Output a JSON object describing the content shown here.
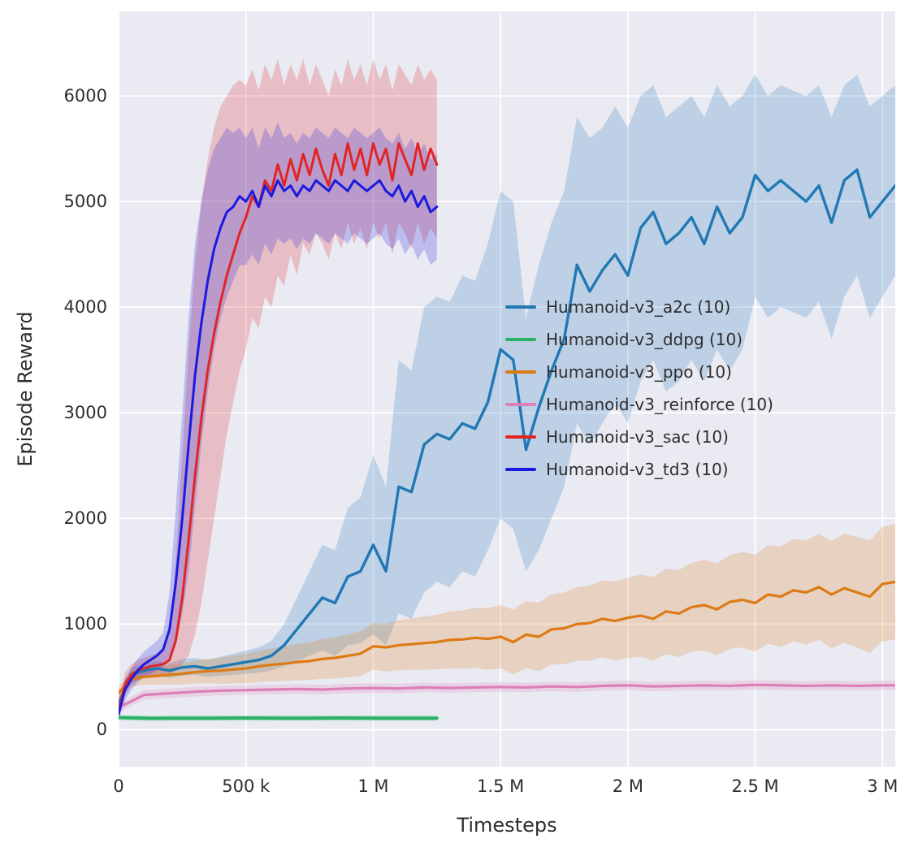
{
  "figure": {
    "background": "#ffffff",
    "plot_background": "#eaeaf2",
    "grid_color": "#ffffff",
    "text_color": "#2e2e2e"
  },
  "chart_data": {
    "type": "line",
    "title": "",
    "xlabel": "Timesteps",
    "ylabel": "Episode Reward",
    "x_unit": "timesteps, values stored in thousands",
    "xlim": [
      0,
      3050
    ],
    "ylim": [
      -350,
      6800
    ],
    "grid": true,
    "legend_position": "inside center-right",
    "x_ticks": [
      {
        "v": 0,
        "label": "0"
      },
      {
        "v": 500,
        "label": "500 k"
      },
      {
        "v": 1000,
        "label": "1 M"
      },
      {
        "v": 1500,
        "label": "1.5 M"
      },
      {
        "v": 2000,
        "label": "2 M"
      },
      {
        "v": 2500,
        "label": "2.5 M"
      },
      {
        "v": 3000,
        "label": "3 M"
      }
    ],
    "y_ticks": [
      {
        "v": 0,
        "label": "0"
      },
      {
        "v": 1000,
        "label": "1000"
      },
      {
        "v": 2000,
        "label": "2000"
      },
      {
        "v": 3000,
        "label": "3000"
      },
      {
        "v": 4000,
        "label": "4000"
      },
      {
        "v": 5000,
        "label": "5000"
      },
      {
        "v": 6000,
        "label": "6000"
      }
    ],
    "series": [
      {
        "name": "Humanoid-v3_a2c (10)",
        "color": "#2178b5",
        "line_width": 3.4,
        "x": [
          0,
          50,
          100,
          150,
          200,
          250,
          300,
          350,
          400,
          450,
          500,
          550,
          600,
          650,
          700,
          750,
          800,
          850,
          900,
          950,
          1000,
          1050,
          1100,
          1150,
          1200,
          1250,
          1300,
          1350,
          1400,
          1450,
          1500,
          1550,
          1600,
          1650,
          1700,
          1750,
          1800,
          1850,
          1900,
          1950,
          2000,
          2050,
          2100,
          2150,
          2200,
          2250,
          2300,
          2350,
          2400,
          2450,
          2500,
          2550,
          2600,
          2650,
          2700,
          2750,
          2800,
          2850,
          2900,
          2950,
          3000,
          3050
        ],
        "mean": [
          250,
          520,
          560,
          580,
          560,
          590,
          600,
          580,
          600,
          620,
          640,
          660,
          700,
          800,
          950,
          1100,
          1250,
          1200,
          1450,
          1500,
          1750,
          1500,
          2300,
          2250,
          2700,
          2800,
          2750,
          2900,
          2850,
          3100,
          3600,
          3500,
          2650,
          3050,
          3400,
          3700,
          4400,
          4150,
          4350,
          4500,
          4300,
          4750,
          4900,
          4600,
          4700,
          4850,
          4600,
          4950,
          4700,
          4850,
          5250,
          5100,
          5200,
          5100,
          5000,
          5150,
          4800,
          5200,
          5300,
          4850,
          5000,
          5150
        ],
        "band_lo": [
          200,
          450,
          490,
          510,
          490,
          510,
          520,
          500,
          510,
          520,
          530,
          540,
          560,
          600,
          650,
          700,
          750,
          700,
          800,
          820,
          900,
          800,
          1100,
          1050,
          1300,
          1400,
          1350,
          1500,
          1450,
          1700,
          2000,
          1900,
          1500,
          1700,
          2000,
          2300,
          2900,
          2700,
          2900,
          3100,
          2900,
          3300,
          3500,
          3200,
          3300,
          3500,
          3300,
          3600,
          3400,
          3600,
          4100,
          3900,
          4000,
          3950,
          3900,
          4050,
          3700,
          4100,
          4300,
          3900,
          4100,
          4300
        ],
        "band_hi": [
          320,
          590,
          630,
          650,
          630,
          670,
          680,
          660,
          690,
          720,
          750,
          780,
          840,
          1000,
          1250,
          1500,
          1750,
          1700,
          2100,
          2200,
          2600,
          2300,
          3500,
          3400,
          4000,
          4100,
          4050,
          4300,
          4250,
          4600,
          5100,
          5000,
          3900,
          4400,
          4800,
          5100,
          5800,
          5600,
          5700,
          5900,
          5700,
          6000,
          6100,
          5800,
          5900,
          6000,
          5800,
          6100,
          5900,
          6000,
          6200,
          6000,
          6100,
          6050,
          6000,
          6100,
          5800,
          6100,
          6200,
          5900,
          6000,
          6100
        ]
      },
      {
        "name": "Humanoid-v3_ddpg (10)",
        "color": "#27b266",
        "line_width": 4,
        "x": [
          0,
          125,
          250,
          375,
          500,
          625,
          750,
          875,
          1000,
          1125,
          1250
        ],
        "mean": [
          115,
          108,
          110,
          109,
          111,
          110,
          109,
          111,
          110,
          109,
          110
        ],
        "band_lo": [
          90,
          83,
          85,
          84,
          86,
          85,
          84,
          86,
          85,
          84,
          85
        ],
        "band_hi": [
          140,
          133,
          135,
          134,
          136,
          135,
          134,
          136,
          135,
          134,
          135
        ]
      },
      {
        "name": "Humanoid-v3_ppo (10)",
        "color": "#dd7a14",
        "line_width": 3.2,
        "x": [
          0,
          50,
          100,
          150,
          200,
          250,
          300,
          350,
          400,
          450,
          500,
          550,
          600,
          650,
          700,
          750,
          800,
          850,
          900,
          950,
          1000,
          1050,
          1100,
          1150,
          1200,
          1250,
          1300,
          1350,
          1400,
          1450,
          1500,
          1550,
          1600,
          1650,
          1700,
          1750,
          1800,
          1850,
          1900,
          1950,
          2000,
          2050,
          2100,
          2150,
          2200,
          2250,
          2300,
          2350,
          2400,
          2450,
          2500,
          2550,
          2600,
          2650,
          2700,
          2750,
          2800,
          2850,
          2900,
          2950,
          3000,
          3050
        ],
        "mean": [
          350,
          480,
          500,
          510,
          520,
          530,
          545,
          555,
          560,
          570,
          580,
          600,
          615,
          625,
          640,
          650,
          670,
          680,
          700,
          720,
          790,
          780,
          800,
          810,
          820,
          830,
          850,
          855,
          870,
          860,
          880,
          830,
          900,
          880,
          950,
          960,
          1000,
          1010,
          1050,
          1030,
          1060,
          1080,
          1050,
          1120,
          1100,
          1160,
          1180,
          1140,
          1210,
          1230,
          1200,
          1280,
          1260,
          1320,
          1300,
          1350,
          1280,
          1340,
          1300,
          1260,
          1380,
          1400
        ],
        "band_lo": [
          290,
          412,
          424,
          426,
          428,
          430,
          437,
          439,
          436,
          438,
          440,
          452,
          459,
          461,
          468,
          470,
          482,
          484,
          496,
          508,
          570,
          552,
          564,
          566,
          568,
          570,
          582,
          579,
          586,
          568,
          580,
          522,
          584,
          556,
          618,
          620,
          652,
          654,
          686,
          658,
          680,
          692,
          654,
          716,
          688,
          740,
          752,
          704,
          766,
          778,
          740,
          812,
          784,
          836,
          808,
          850,
          772,
          824,
          776,
          728,
          840,
          852
        ],
        "band_hi": [
          410,
          548,
          576,
          594,
          612,
          630,
          653,
          671,
          684,
          702,
          720,
          748,
          771,
          789,
          812,
          830,
          858,
          876,
          904,
          932,
          1010,
          1008,
          1036,
          1054,
          1072,
          1090,
          1118,
          1131,
          1154,
          1152,
          1180,
          1138,
          1216,
          1204,
          1282,
          1300,
          1348,
          1366,
          1414,
          1402,
          1440,
          1468,
          1446,
          1524,
          1512,
          1580,
          1608,
          1576,
          1654,
          1682,
          1660,
          1748,
          1736,
          1804,
          1792,
          1850,
          1788,
          1856,
          1824,
          1792,
          1920,
          1948
        ]
      },
      {
        "name": "Humanoid-v3_reinforce (10)",
        "color": "#de7eb9",
        "line_width": 3.2,
        "x": [
          0,
          100,
          200,
          300,
          400,
          500,
          600,
          700,
          800,
          900,
          1000,
          1100,
          1200,
          1300,
          1400,
          1500,
          1600,
          1700,
          1800,
          1900,
          2000,
          2100,
          2200,
          2300,
          2400,
          2500,
          2600,
          2700,
          2800,
          2900,
          3000,
          3050
        ],
        "mean": [
          210,
          330,
          345,
          360,
          370,
          375,
          380,
          385,
          380,
          390,
          395,
          390,
          400,
          395,
          400,
          405,
          400,
          410,
          405,
          415,
          420,
          410,
          415,
          420,
          415,
          425,
          420,
          415,
          420,
          415,
          420,
          420
        ],
        "band_lo": [
          165,
          285,
          300,
          315,
          325,
          330,
          335,
          340,
          335,
          345,
          350,
          345,
          355,
          350,
          355,
          360,
          355,
          365,
          360,
          370,
          375,
          365,
          370,
          375,
          370,
          380,
          375,
          370,
          375,
          370,
          375,
          375
        ],
        "band_hi": [
          255,
          375,
          390,
          405,
          415,
          420,
          425,
          430,
          425,
          435,
          440,
          435,
          445,
          440,
          445,
          450,
          445,
          455,
          450,
          460,
          465,
          455,
          460,
          465,
          460,
          470,
          465,
          460,
          465,
          460,
          465,
          465
        ]
      },
      {
        "name": "Humanoid-v3_sac (10)",
        "color": "#e02525",
        "line_width": 3,
        "x": [
          0,
          25,
          50,
          75,
          100,
          125,
          150,
          175,
          200,
          225,
          250,
          275,
          300,
          325,
          350,
          375,
          400,
          425,
          450,
          475,
          500,
          525,
          550,
          575,
          600,
          625,
          650,
          675,
          700,
          725,
          750,
          775,
          800,
          825,
          850,
          875,
          900,
          925,
          950,
          975,
          1000,
          1025,
          1050,
          1075,
          1100,
          1125,
          1150,
          1175,
          1200,
          1225,
          1250
        ],
        "mean": [
          180,
          430,
          520,
          560,
          580,
          600,
          610,
          620,
          660,
          850,
          1250,
          1800,
          2400,
          2950,
          3400,
          3750,
          4050,
          4300,
          4500,
          4700,
          4850,
          5050,
          4950,
          5200,
          5100,
          5350,
          5150,
          5400,
          5200,
          5450,
          5250,
          5500,
          5300,
          5150,
          5450,
          5250,
          5550,
          5300,
          5500,
          5250,
          5550,
          5350,
          5500,
          5200,
          5550,
          5400,
          5250,
          5550,
          5300,
          5500,
          5350
        ],
        "band_lo": [
          120,
          330,
          430,
          470,
          490,
          500,
          510,
          510,
          520,
          560,
          620,
          700,
          900,
          1200,
          1600,
          2000,
          2400,
          2800,
          3100,
          3400,
          3600,
          3900,
          3800,
          4100,
          4000,
          4300,
          4200,
          4500,
          4300,
          4600,
          4500,
          4700,
          4600,
          4450,
          4700,
          4550,
          4800,
          4600,
          4750,
          4550,
          4800,
          4650,
          4800,
          4500,
          4800,
          4700,
          4550,
          4800,
          4600,
          4750,
          4650
        ],
        "band_hi": [
          260,
          540,
          620,
          660,
          680,
          700,
          720,
          740,
          900,
          1600,
          2600,
          3600,
          4400,
          5000,
          5400,
          5700,
          5900,
          6000,
          6100,
          6150,
          6100,
          6250,
          6050,
          6300,
          6150,
          6350,
          6100,
          6300,
          6150,
          6350,
          6100,
          6300,
          6150,
          6000,
          6250,
          6100,
          6350,
          6150,
          6300,
          6100,
          6350,
          6150,
          6300,
          6050,
          6300,
          6200,
          6100,
          6300,
          6150,
          6250,
          6150
        ]
      },
      {
        "name": "Humanoid-v3_td3 (10)",
        "color": "#1a1ae0",
        "line_width": 3,
        "x": [
          0,
          25,
          50,
          75,
          100,
          125,
          150,
          175,
          200,
          225,
          250,
          275,
          300,
          325,
          350,
          375,
          400,
          425,
          450,
          475,
          500,
          525,
          550,
          575,
          600,
          625,
          650,
          675,
          700,
          725,
          750,
          775,
          800,
          825,
          850,
          875,
          900,
          925,
          950,
          975,
          1000,
          1025,
          1050,
          1075,
          1100,
          1125,
          1150,
          1175,
          1200,
          1225,
          1250
        ],
        "mean": [
          150,
          380,
          480,
          560,
          620,
          660,
          700,
          760,
          950,
          1400,
          2000,
          2700,
          3350,
          3850,
          4250,
          4550,
          4750,
          4900,
          4950,
          5050,
          5000,
          5100,
          4950,
          5150,
          5050,
          5200,
          5100,
          5150,
          5050,
          5150,
          5100,
          5200,
          5150,
          5100,
          5200,
          5150,
          5100,
          5200,
          5150,
          5100,
          5150,
          5200,
          5100,
          5050,
          5150,
          5000,
          5100,
          4950,
          5050,
          4900,
          4950
        ],
        "band_lo": [
          90,
          280,
          380,
          450,
          500,
          530,
          560,
          600,
          650,
          800,
          1100,
          1500,
          2100,
          2700,
          3200,
          3600,
          3900,
          4100,
          4250,
          4400,
          4400,
          4500,
          4400,
          4600,
          4500,
          4650,
          4600,
          4650,
          4550,
          4650,
          4600,
          4700,
          4650,
          4600,
          4700,
          4650,
          4600,
          4700,
          4650,
          4600,
          4650,
          4700,
          4600,
          4550,
          4650,
          4500,
          4600,
          4450,
          4550,
          4400,
          4450
        ],
        "band_hi": [
          210,
          480,
          580,
          670,
          740,
          790,
          840,
          920,
          1300,
          2100,
          3000,
          3900,
          4600,
          5000,
          5300,
          5500,
          5600,
          5700,
          5650,
          5700,
          5600,
          5700,
          5500,
          5700,
          5600,
          5750,
          5600,
          5650,
          5550,
          5650,
          5600,
          5700,
          5650,
          5600,
          5700,
          5650,
          5600,
          5700,
          5650,
          5600,
          5650,
          5700,
          5600,
          5550,
          5650,
          5500,
          5600,
          5450,
          5550,
          5400,
          5450
        ]
      }
    ]
  }
}
